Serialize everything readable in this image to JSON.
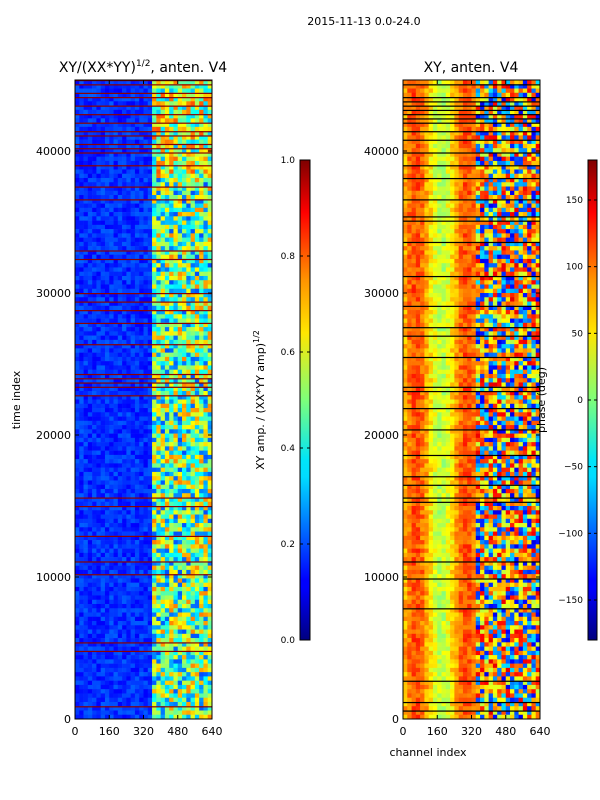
{
  "figure_title": "2015-11-13 0.0-24.0",
  "chart_data": [
    {
      "type": "heatmap",
      "title_text": "XY/(XX*YY)",
      "title_exponent": "1/2",
      "title_suffix": ", anten. V4",
      "xlabel": "",
      "ylabel": "time index",
      "xlim": [
        0,
        640
      ],
      "ylim": [
        0,
        45000
      ],
      "xticks": [
        0,
        160,
        320,
        480,
        640
      ],
      "yticks": [
        0,
        10000,
        20000,
        30000,
        40000
      ],
      "colormap": "jet",
      "colorbar": {
        "label_main": "XY amp. / (XX*YY amp)",
        "label_exponent": "1/2",
        "range": [
          0.0,
          1.0
        ],
        "ticks": [
          "0.0",
          "0.2",
          "0.4",
          "0.6",
          "0.8",
          "1.0"
        ]
      }
    },
    {
      "type": "heatmap",
      "title_text": "XY, anten. V4",
      "xlabel": "channel index",
      "ylabel": "",
      "xlim": [
        0,
        640
      ],
      "ylim": [
        0,
        45000
      ],
      "xticks": [
        0,
        160,
        320,
        480,
        640
      ],
      "yticks": [
        0,
        10000,
        20000,
        30000,
        40000
      ],
      "colormap": "jet",
      "colorbar": {
        "label_main": "phase (deg)",
        "range": [
          -180,
          180
        ],
        "ticks": [
          "−150",
          "−100",
          "−50",
          "0",
          "50",
          "100",
          "150"
        ]
      }
    }
  ]
}
